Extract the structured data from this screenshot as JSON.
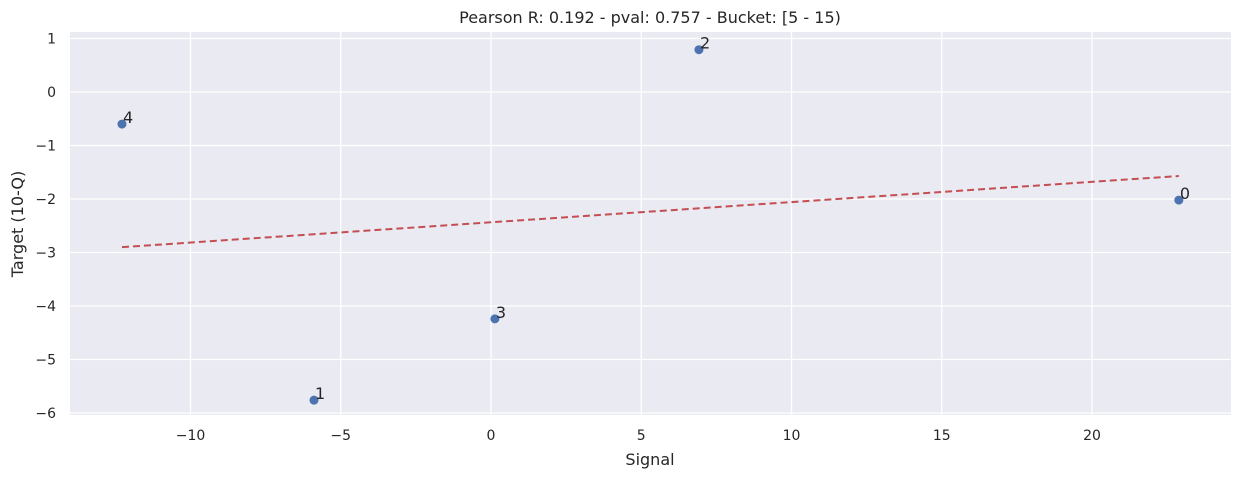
{
  "chart_data": {
    "type": "scatter",
    "title": "Pearson R: 0.192 - pval: 0.757 - Bucket: [5 - 15)",
    "xlabel": "Signal",
    "ylabel": "Target (10-Q)",
    "xlim": [
      -14.1,
      24.5
    ],
    "ylim": [
      -6.1,
      1.1
    ],
    "xticks": [
      -10,
      -5,
      0,
      5,
      10,
      15,
      20
    ],
    "xtick_labels": [
      "−10",
      "−5",
      "0",
      "5",
      "10",
      "15",
      "20"
    ],
    "yticks": [
      1,
      0,
      -1,
      -2,
      -3,
      -4,
      -5,
      -6
    ],
    "ytick_labels": [
      "1",
      "0",
      "−1",
      "−2",
      "−3",
      "−4",
      "−5",
      "−6"
    ],
    "grid": true,
    "legend": null,
    "points": [
      {
        "label": "0",
        "x": 22.89,
        "y": -2.02
      },
      {
        "label": "1",
        "x": -5.89,
        "y": -5.76
      },
      {
        "label": "2",
        "x": 6.92,
        "y": 0.79
      },
      {
        "label": "3",
        "x": 0.13,
        "y": -4.24
      },
      {
        "label": "4",
        "x": -12.28,
        "y": -0.6
      }
    ],
    "fit_line": {
      "style": "dashed",
      "x": [
        -12.28,
        22.89
      ],
      "y": [
        -2.9,
        -1.57
      ]
    },
    "colors": {
      "background": "#eaeaf2",
      "grid": "#ffffff",
      "points": "#4c72b0",
      "fit_line": "#c44e52"
    }
  }
}
